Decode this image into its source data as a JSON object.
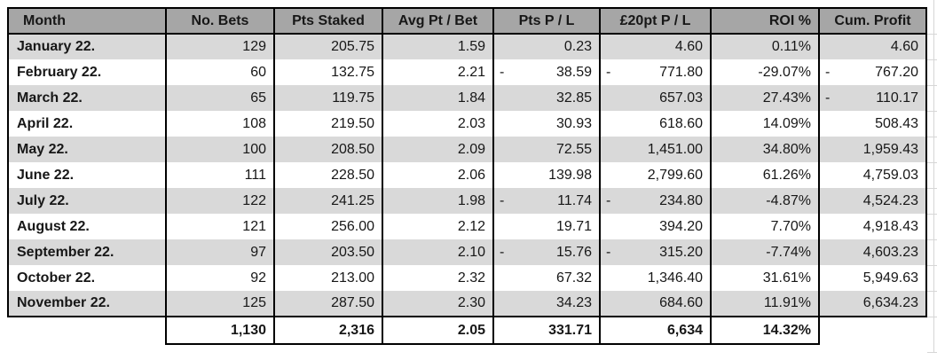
{
  "table": {
    "columns": [
      {
        "label": "Month"
      },
      {
        "label": "No. Bets"
      },
      {
        "label": "Pts Staked"
      },
      {
        "label": "Avg Pt / Bet"
      },
      {
        "label": "Pts P / L"
      },
      {
        "label": "£20pt P / L"
      },
      {
        "label": "ROI %"
      },
      {
        "label": "Cum. Profit"
      }
    ],
    "rows": [
      {
        "month": "January 22.",
        "values": [
          {
            "v": "129"
          },
          {
            "v": "205.75"
          },
          {
            "v": "1.59"
          },
          {
            "v": "0.23"
          },
          {
            "v": "4.60"
          },
          {
            "v": "0.11%"
          },
          {
            "v": "4.60"
          }
        ]
      },
      {
        "month": "February 22.",
        "values": [
          {
            "v": "60"
          },
          {
            "v": "132.75"
          },
          {
            "v": "2.21"
          },
          {
            "v": "38.59",
            "neg": true
          },
          {
            "v": "771.80",
            "neg": true
          },
          {
            "v": "-29.07%"
          },
          {
            "v": "767.20",
            "neg": true
          }
        ]
      },
      {
        "month": "March 22.",
        "values": [
          {
            "v": "65"
          },
          {
            "v": "119.75"
          },
          {
            "v": "1.84"
          },
          {
            "v": "32.85"
          },
          {
            "v": "657.03"
          },
          {
            "v": "27.43%"
          },
          {
            "v": "110.17",
            "neg": true
          }
        ]
      },
      {
        "month": "April 22.",
        "values": [
          {
            "v": "108"
          },
          {
            "v": "219.50"
          },
          {
            "v": "2.03"
          },
          {
            "v": "30.93"
          },
          {
            "v": "618.60"
          },
          {
            "v": "14.09%"
          },
          {
            "v": "508.43"
          }
        ]
      },
      {
        "month": "May 22.",
        "values": [
          {
            "v": "100"
          },
          {
            "v": "208.50"
          },
          {
            "v": "2.09"
          },
          {
            "v": "72.55"
          },
          {
            "v": "1,451.00"
          },
          {
            "v": "34.80%"
          },
          {
            "v": "1,959.43"
          }
        ]
      },
      {
        "month": "June 22.",
        "values": [
          {
            "v": "111"
          },
          {
            "v": "228.50"
          },
          {
            "v": "2.06"
          },
          {
            "v": "139.98"
          },
          {
            "v": "2,799.60"
          },
          {
            "v": "61.26%"
          },
          {
            "v": "4,759.03"
          }
        ]
      },
      {
        "month": "July 22.",
        "values": [
          {
            "v": "122"
          },
          {
            "v": "241.25"
          },
          {
            "v": "1.98"
          },
          {
            "v": "11.74",
            "neg": true
          },
          {
            "v": "234.80",
            "neg": true
          },
          {
            "v": "-4.87%"
          },
          {
            "v": "4,524.23"
          }
        ]
      },
      {
        "month": "August 22.",
        "values": [
          {
            "v": "121"
          },
          {
            "v": "256.00"
          },
          {
            "v": "2.12"
          },
          {
            "v": "19.71"
          },
          {
            "v": "394.20"
          },
          {
            "v": "7.70%"
          },
          {
            "v": "4,918.43"
          }
        ]
      },
      {
        "month": "September 22.",
        "values": [
          {
            "v": "97"
          },
          {
            "v": "203.50"
          },
          {
            "v": "2.10"
          },
          {
            "v": "15.76",
            "neg": true
          },
          {
            "v": "315.20",
            "neg": true
          },
          {
            "v": "-7.74%"
          },
          {
            "v": "4,603.23"
          }
        ]
      },
      {
        "month": "October 22.",
        "values": [
          {
            "v": "92"
          },
          {
            "v": "213.00"
          },
          {
            "v": "2.32"
          },
          {
            "v": "67.32"
          },
          {
            "v": "1,346.40"
          },
          {
            "v": "31.61%"
          },
          {
            "v": "5,949.63"
          }
        ]
      },
      {
        "month": "November 22.",
        "values": [
          {
            "v": "125"
          },
          {
            "v": "287.50"
          },
          {
            "v": "2.30"
          },
          {
            "v": "34.23"
          },
          {
            "v": "684.60"
          },
          {
            "v": "11.91%"
          },
          {
            "v": "6,634.23"
          }
        ]
      }
    ],
    "totals": {
      "month": "",
      "values": [
        {
          "v": "1,130"
        },
        {
          "v": "2,316"
        },
        {
          "v": "2.05"
        },
        {
          "v": "331.71"
        },
        {
          "v": "6,634"
        },
        {
          "v": "14.32%"
        },
        {
          "v": "",
          "blank": true
        }
      ]
    }
  },
  "format": {
    "negative_dash": "-"
  },
  "colors": {
    "header_bg": "#a6a6a6",
    "row_alt_bg": "#d9d9d9",
    "row_bg": "#ffffff",
    "border": "#000000",
    "text": "#171717",
    "sheet_gridline": "#d6d6d6"
  }
}
